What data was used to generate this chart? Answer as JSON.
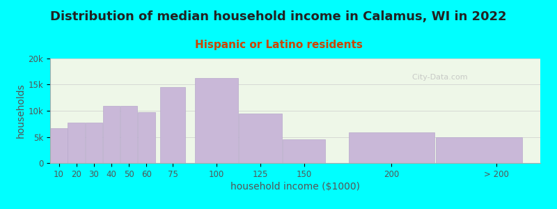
{
  "title": "Distribution of median household income in Calamus, WI in 2022",
  "subtitle": "Hispanic or Latino residents",
  "xlabel": "household income ($1000)",
  "ylabel": "households",
  "background_outer": "#00FFFF",
  "background_inner": "#eef7e8",
  "bar_color": "#c9b8d8",
  "bar_edge_color": "#b8a8cc",
  "bar_left_edges": [
    5,
    15,
    25,
    35,
    45,
    55,
    67.5,
    87.5,
    112.5,
    137.5,
    175,
    225
  ],
  "bar_widths": [
    10,
    10,
    10,
    10,
    10,
    10,
    15,
    25,
    25,
    25,
    50,
    50
  ],
  "values": [
    6700,
    7800,
    7800,
    11000,
    11000,
    9700,
    14500,
    16300,
    9500,
    4500,
    5900,
    5000
  ],
  "xtick_positions": [
    10,
    20,
    30,
    40,
    50,
    60,
    75,
    100,
    125,
    150,
    200,
    260
  ],
  "xtick_labels": [
    "10",
    "20",
    "30",
    "40",
    "50",
    "60",
    "75",
    "100",
    "125",
    "150",
    "200",
    "> 200"
  ],
  "ylim": [
    0,
    20000
  ],
  "yticks": [
    0,
    5000,
    10000,
    15000,
    20000
  ],
  "ytick_labels": [
    "0",
    "5k",
    "10k",
    "15k",
    "20k"
  ],
  "xlim": [
    5,
    285
  ],
  "title_fontsize": 13,
  "subtitle_fontsize": 11,
  "axis_label_fontsize": 10,
  "tick_fontsize": 8.5,
  "watermark_text": "City-Data.com",
  "watermark_color": "#bbbbbb",
  "subtitle_color": "#cc4400",
  "title_color": "#222222"
}
